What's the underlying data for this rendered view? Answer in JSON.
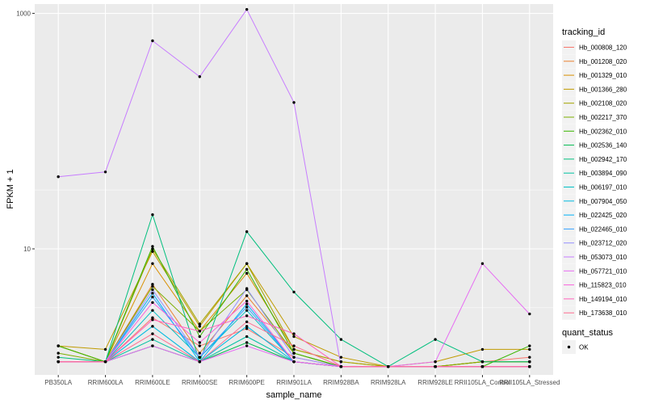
{
  "chart_data": {
    "type": "line",
    "title": "",
    "xlabel": "sample_name",
    "ylabel": "FPKM + 1",
    "y_scale": "log10",
    "ylim": [
      0.85,
      1200
    ],
    "y_ticks": [
      10,
      1000
    ],
    "y_tick_labels": [
      "10",
      "1000"
    ],
    "grid": true,
    "legend_position": "right",
    "categories": [
      "PB350LA",
      "RRIM600LA",
      "RRIM600LE",
      "RRIM600SE",
      "RRIM600PE",
      "RRIM901LA",
      "RRIM928BA",
      "RRIM928LA",
      "RRIM928LE",
      "RRII105LA_Control",
      "RRII105LA_Stressed"
    ],
    "colors": {
      "background": "#ebebeb",
      "grid": "#ffffff",
      "point": "#000000"
    },
    "legend": {
      "color_title": "tracking_id",
      "shape_title": "quant_status",
      "shape_entries": [
        {
          "label": "OK",
          "shape": "point",
          "color": "#000000"
        }
      ]
    },
    "series": [
      {
        "name": "Hb_000808_120",
        "color": "#F8766D",
        "values": [
          1.1,
          1.1,
          2.6,
          1.5,
          2.1,
          1.2,
          1.0,
          1.0,
          1.0,
          1.1,
          1.2
        ]
      },
      {
        "name": "Hb_001208_020",
        "color": "#EA8331",
        "values": [
          1.1,
          1.1,
          5.0,
          1.3,
          4.0,
          1.3,
          1.0,
          1.0,
          1.0,
          1.1,
          1.1
        ]
      },
      {
        "name": "Hb_001329_010",
        "color": "#D89000",
        "values": [
          1.5,
          1.1,
          7.5,
          2.0,
          6.2,
          1.4,
          1.1,
          1.0,
          1.0,
          1.1,
          1.1
        ]
      },
      {
        "name": "Hb_001366_280",
        "color": "#C09B00",
        "values": [
          1.5,
          1.4,
          9.5,
          2.2,
          7.5,
          1.8,
          1.2,
          1.0,
          1.1,
          1.4,
          1.4
        ]
      },
      {
        "name": "Hb_002108_020",
        "color": "#A3A500",
        "values": [
          1.5,
          1.1,
          10.0,
          2.3,
          7.5,
          1.4,
          1.1,
          1.0,
          1.0,
          1.1,
          1.1
        ]
      },
      {
        "name": "Hb_002217_370",
        "color": "#7CAE00",
        "values": [
          1.3,
          1.1,
          4.8,
          2.0,
          4.5,
          1.3,
          1.0,
          1.0,
          1.0,
          1.1,
          1.1
        ]
      },
      {
        "name": "Hb_002362_010",
        "color": "#39B600",
        "values": [
          1.5,
          1.1,
          10.5,
          1.8,
          6.7,
          1.3,
          1.0,
          1.0,
          1.0,
          1.0,
          1.5
        ]
      },
      {
        "name": "Hb_002536_140",
        "color": "#00BB4E",
        "values": [
          1.1,
          1.1,
          1.5,
          1.1,
          1.6,
          1.1,
          1.0,
          1.0,
          1.0,
          1.0,
          1.0
        ]
      },
      {
        "name": "Hb_002942_170",
        "color": "#00BF7D",
        "values": [
          1.2,
          1.1,
          19.5,
          1.1,
          14.0,
          4.3,
          1.7,
          1.0,
          1.7,
          1.1,
          1.1
        ]
      },
      {
        "name": "Hb_003894_090",
        "color": "#00C1A3",
        "values": [
          1.1,
          1.1,
          1.7,
          1.1,
          1.8,
          1.1,
          1.0,
          1.0,
          1.0,
          1.0,
          1.0
        ]
      },
      {
        "name": "Hb_006197_010",
        "color": "#00BFC4",
        "values": [
          1.1,
          1.1,
          3.0,
          1.2,
          3.0,
          1.1,
          1.0,
          1.0,
          1.0,
          1.0,
          1.0
        ]
      },
      {
        "name": "Hb_007904_050",
        "color": "#00BAE0",
        "values": [
          1.1,
          1.1,
          2.2,
          1.1,
          2.2,
          1.1,
          1.0,
          1.0,
          1.0,
          1.0,
          1.0
        ]
      },
      {
        "name": "Hb_022425_020",
        "color": "#00B0F6",
        "values": [
          1.1,
          1.1,
          4.2,
          1.1,
          3.4,
          1.1,
          1.0,
          1.0,
          1.0,
          1.0,
          1.0
        ]
      },
      {
        "name": "Hb_022465_010",
        "color": "#35A2FF",
        "values": [
          1.1,
          1.1,
          3.9,
          1.2,
          3.2,
          1.1,
          1.0,
          1.0,
          1.0,
          1.0,
          1.0
        ]
      },
      {
        "name": "Hb_023712_020",
        "color": "#9590FF",
        "values": [
          1.1,
          1.1,
          4.5,
          1.2,
          4.6,
          1.2,
          1.0,
          1.0,
          1.0,
          1.0,
          1.0
        ]
      },
      {
        "name": "Hb_053073_010",
        "color": "#C77CFF",
        "values": [
          41,
          45,
          585,
          290,
          1080,
          175,
          1.0,
          1.0,
          1.0,
          1.0,
          1.0
        ]
      },
      {
        "name": "Hb_057721_010",
        "color": "#E76BF3",
        "values": [
          1.1,
          1.1,
          1.5,
          1.1,
          1.5,
          1.1,
          1.0,
          1.0,
          1.1,
          7.5,
          2.8
        ]
      },
      {
        "name": "Hb_115823_010",
        "color": "#FA62DB",
        "values": [
          1.1,
          1.1,
          3.5,
          1.6,
          3.6,
          1.1,
          1.0,
          1.0,
          1.0,
          1.0,
          1.0
        ]
      },
      {
        "name": "Hb_149194_010",
        "color": "#FF62BC",
        "values": [
          1.1,
          1.1,
          2.5,
          2.0,
          2.7,
          1.9,
          1.0,
          1.0,
          1.0,
          1.0,
          1.0
        ]
      },
      {
        "name": "Hb_173638_010",
        "color": "#FF6C91",
        "values": [
          1.1,
          1.1,
          1.9,
          1.1,
          2.4,
          1.5,
          1.0,
          1.0,
          1.0,
          1.0,
          1.0
        ]
      }
    ]
  }
}
